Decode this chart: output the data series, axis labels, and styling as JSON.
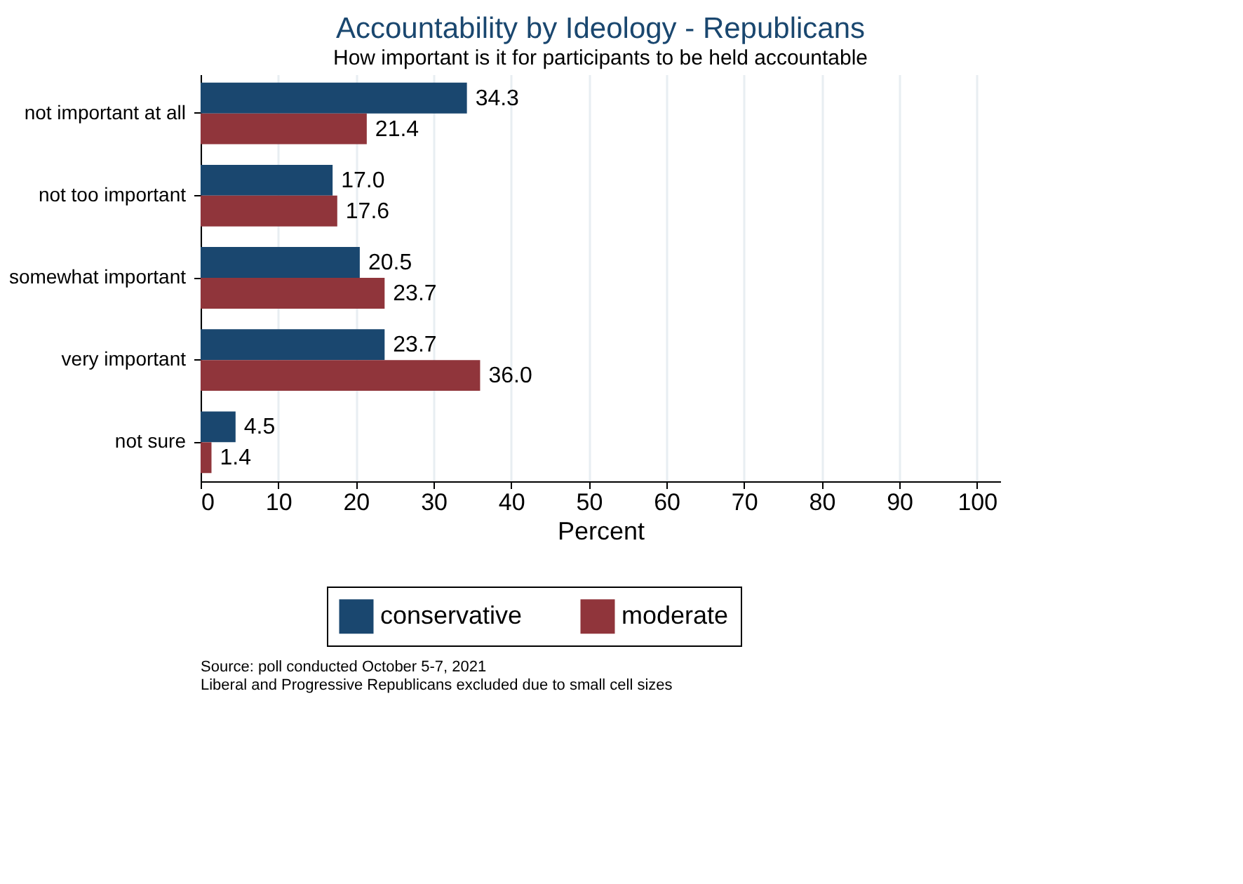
{
  "chart_data": {
    "type": "bar",
    "orientation": "horizontal",
    "title": "Accountability by Ideology - Republicans",
    "subtitle": "How important is it for participants to be held accountable",
    "xlabel": "Percent",
    "categories": [
      "not important at all",
      "not too important",
      "somewhat important",
      "very important",
      "not sure"
    ],
    "series": [
      {
        "name": "conservative",
        "color": "#1a476f",
        "values": [
          34.3,
          17.0,
          20.5,
          23.7,
          4.5
        ],
        "value_labels": [
          "34.3",
          "17.0",
          "20.5",
          "23.7",
          "4.5"
        ]
      },
      {
        "name": "moderate",
        "color": "#90353b",
        "values": [
          21.4,
          17.6,
          23.7,
          36.0,
          1.4
        ],
        "value_labels": [
          "21.4",
          "17.6",
          "23.7",
          "36.0",
          "1.4"
        ]
      }
    ],
    "xlim": [
      0,
      103
    ],
    "xticks": [
      0,
      10,
      20,
      30,
      40,
      50,
      60,
      70,
      80,
      90,
      100
    ],
    "grid": "x",
    "legend": "bottom",
    "annotations": [
      "Source: poll conducted October 5-7, 2021",
      "Liberal and Progressive Republicans excluded due to small cell sizes"
    ]
  }
}
